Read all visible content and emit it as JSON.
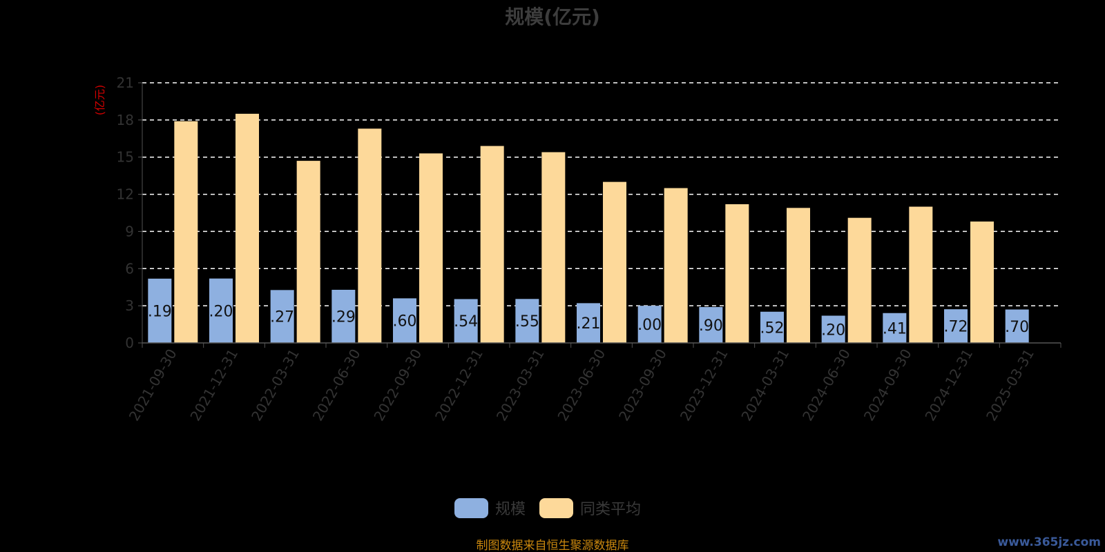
{
  "chart_data": {
    "type": "bar",
    "title": "规模(亿元)",
    "y_unit": "(亿元)",
    "ylim": [
      0,
      21
    ],
    "yticks": [
      0,
      3,
      6,
      9,
      12,
      15,
      18,
      21
    ],
    "grid": true,
    "legend_position": "bottom",
    "categories": [
      "2021-09-30",
      "2021-12-31",
      "2022-03-31",
      "2022-06-30",
      "2022-09-30",
      "2022-12-31",
      "2023-03-31",
      "2023-06-30",
      "2023-09-30",
      "2023-12-31",
      "2024-03-31",
      "2024-06-30",
      "2024-09-30",
      "2024-12-31",
      "2025-03-31"
    ],
    "series": [
      {
        "name": "规模",
        "color": "#8eb0e0",
        "values": [
          5.19,
          5.2,
          4.27,
          4.29,
          3.6,
          3.54,
          3.55,
          3.21,
          3.0,
          2.9,
          2.52,
          2.2,
          2.41,
          2.72,
          2.7
        ],
        "labels": [
          ".19",
          ".20",
          ".27",
          ".29",
          ".60",
          ".54",
          ".55",
          ".21",
          ".00",
          ".90",
          ".52",
          ".20",
          ".41",
          ".72",
          ".70"
        ]
      },
      {
        "name": "同类平均",
        "color": "#fdd99a",
        "values": [
          17.9,
          18.5,
          14.7,
          17.3,
          15.3,
          15.9,
          15.4,
          13.0,
          12.5,
          11.2,
          10.9,
          10.1,
          11.0,
          9.8,
          null
        ]
      }
    ]
  },
  "footer": {
    "source": "制图数据来自恒生聚源数据库",
    "watermark": "www.365jz.com"
  }
}
